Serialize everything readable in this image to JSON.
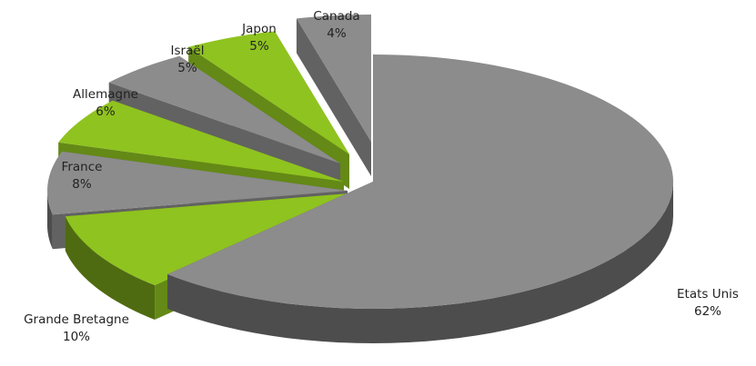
{
  "chart_data": {
    "type": "pie",
    "title": "",
    "exploded": true,
    "style": "3d",
    "slices": [
      {
        "label": "Etats Unis",
        "value": 62,
        "value_label": "62%",
        "color": "#8c8c8c"
      },
      {
        "label": "Grande Bretagne",
        "value": 10,
        "value_label": "10%",
        "color": "#8fc31f"
      },
      {
        "label": "France",
        "value": 8,
        "value_label": "8%",
        "color": "#8c8c8c"
      },
      {
        "label": "Allemagne",
        "value": 6,
        "value_label": "6%",
        "color": "#8fc31f"
      },
      {
        "label": "Israël",
        "value": 5,
        "value_label": "5%",
        "color": "#8c8c8c"
      },
      {
        "label": "Japon",
        "value": 5,
        "value_label": "5%",
        "color": "#8fc31f"
      },
      {
        "label": "Canada",
        "value": 4,
        "value_label": "4%",
        "color": "#8c8c8c"
      }
    ]
  }
}
